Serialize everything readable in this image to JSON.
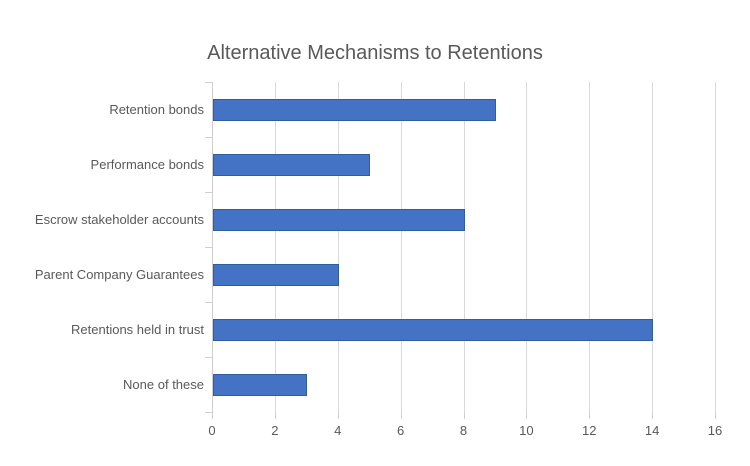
{
  "title": "Alternative Mechanisms to Retentions",
  "colors": {
    "background": "#ffffff",
    "bar_fill": "#4472c4",
    "bar_border": "#2f5d9e",
    "gridline": "#d9d9d9",
    "axis": "#d0cece",
    "text": "#595959"
  },
  "chart_data": {
    "type": "bar",
    "orientation": "horizontal",
    "title": "Alternative Mechanisms to Retentions",
    "categories": [
      "Retention bonds",
      "Performance bonds",
      "Escrow stakeholder accounts",
      "Parent Company Guarantees",
      "Retentions held in trust",
      "None of these"
    ],
    "values": [
      9,
      5,
      8,
      4,
      14,
      3
    ],
    "xlabel": "",
    "ylabel": "",
    "xlim": [
      0,
      16
    ],
    "xticks": [
      0,
      2,
      4,
      6,
      8,
      10,
      12,
      14,
      16
    ],
    "grid": "vertical-gridlines-on",
    "legend": "none"
  }
}
